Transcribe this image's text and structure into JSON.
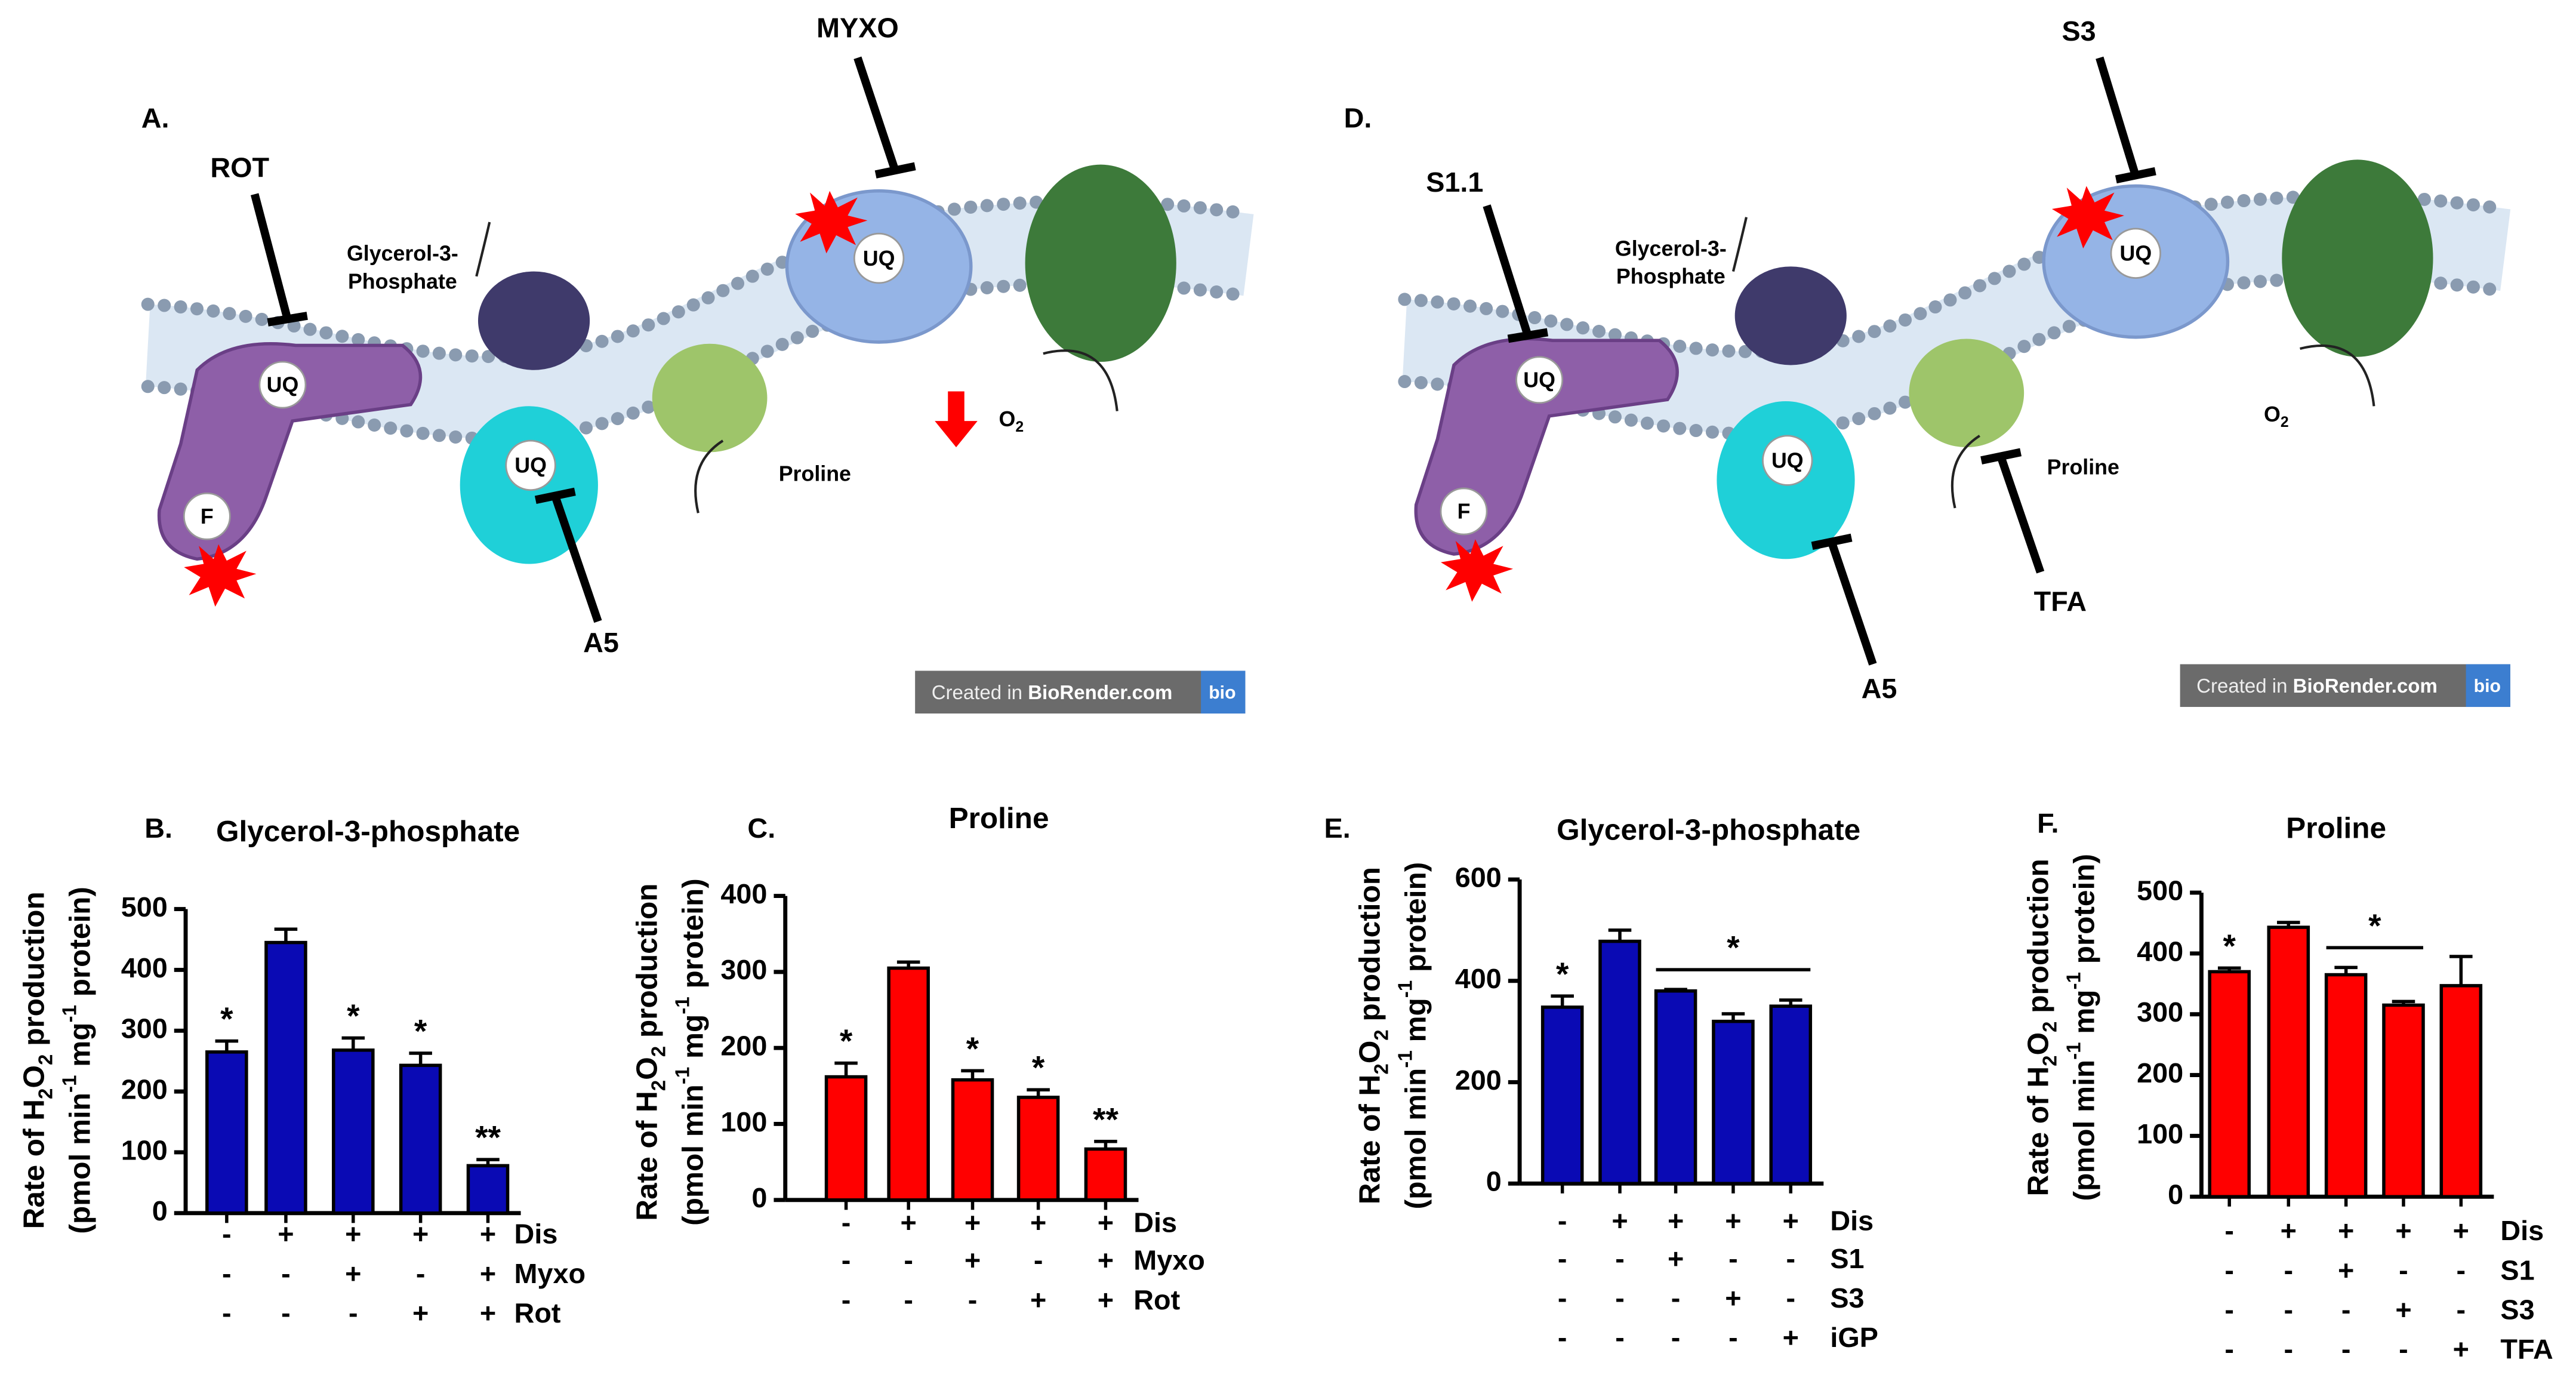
{
  "diagrams": [
    {
      "panel": "A.",
      "inhibitors": [
        "ROT",
        "MYXO",
        "A5"
      ],
      "substrates": [
        "Glycerol-3-",
        "Phosphate",
        "Proline"
      ],
      "uq": "UQ",
      "f": "F",
      "o2": [
        "O",
        "2"
      ],
      "credit": [
        "Created in ",
        "BioRender.com",
        "bio"
      ]
    },
    {
      "panel": "D.",
      "inhibitors": [
        "S1.1",
        "S3",
        "TFA",
        "A5"
      ],
      "substrates": [
        "Glycerol-3-",
        "Phosphate",
        "Proline"
      ],
      "uq": "UQ",
      "f": "F",
      "o2": [
        "O",
        "2"
      ],
      "credit": [
        "Created in ",
        "BioRender.com",
        "bio"
      ]
    }
  ],
  "chart_data": [
    {
      "type": "bar",
      "panel": "B.",
      "title": "Glycerol-3-phosphate",
      "color": "#0a0ab4",
      "ylabel": [
        [
          "Rate of H",
          "2",
          "O",
          "2",
          " production"
        ],
        [
          "(pmol min",
          "-1",
          " mg",
          "-1",
          " protein)"
        ]
      ],
      "values": [
        265,
        445,
        268,
        243,
        78
      ],
      "errors": [
        18,
        22,
        20,
        20,
        10
      ],
      "annotations": [
        "*",
        null,
        "*",
        "*",
        "**"
      ],
      "ylim": [
        0,
        500
      ],
      "yticks": [
        0,
        100,
        200,
        300,
        400,
        500
      ],
      "conditions": [
        {
          "name": "Dis",
          "signs": [
            "-",
            "+",
            "+",
            "+",
            "+"
          ]
        },
        {
          "name": "Myxo",
          "signs": [
            "-",
            "-",
            "+",
            "-",
            "+"
          ]
        },
        {
          "name": "Rot",
          "signs": [
            "-",
            "-",
            "-",
            "+",
            "+"
          ]
        }
      ]
    },
    {
      "type": "bar",
      "panel": "C.",
      "title": "Proline",
      "color": "#ff0000",
      "ylabel": [
        [
          "Rate of H",
          "2",
          "O",
          "2",
          " production"
        ],
        [
          "(pmol min",
          "-1",
          " mg",
          "-1",
          " protein)"
        ]
      ],
      "values": [
        162,
        305,
        158,
        135,
        67
      ],
      "errors": [
        18,
        8,
        12,
        10,
        10
      ],
      "annotations": [
        "*",
        null,
        "*",
        "*",
        "**"
      ],
      "ylim": [
        0,
        400
      ],
      "yticks": [
        0,
        100,
        200,
        300,
        400
      ],
      "conditions": [
        {
          "name": "Dis",
          "signs": [
            "-",
            "+",
            "+",
            "+",
            "+"
          ]
        },
        {
          "name": "Myxo",
          "signs": [
            "-",
            "-",
            "+",
            "-",
            "+"
          ]
        },
        {
          "name": "Rot",
          "signs": [
            "-",
            "-",
            "-",
            "+",
            "+"
          ]
        }
      ]
    },
    {
      "type": "bar",
      "panel": "E.",
      "title": "Glycerol-3-phosphate",
      "color": "#0a0ab4",
      "ylabel": [
        [
          "Rate of H",
          "2",
          "O",
          "2",
          " production"
        ],
        [
          "(pmol min",
          "-1",
          " mg",
          "-1",
          " protein)"
        ]
      ],
      "values": [
        348,
        478,
        380,
        320,
        350
      ],
      "errors": [
        22,
        22,
        3,
        15,
        12
      ],
      "annotations": [
        "*",
        null,
        null,
        null,
        null
      ],
      "group_annotation": {
        "text": "*",
        "span": [
          2,
          4
        ]
      },
      "ylim": [
        0,
        600
      ],
      "yticks": [
        0,
        200,
        400,
        600
      ],
      "conditions": [
        {
          "name": "Dis",
          "signs": [
            "-",
            "+",
            "+",
            "+",
            "+"
          ]
        },
        {
          "name": "S1",
          "signs": [
            "-",
            "-",
            "+",
            "-",
            "-"
          ]
        },
        {
          "name": "S3",
          "signs": [
            "-",
            "-",
            "-",
            "+",
            "-"
          ]
        },
        {
          "name": "iGP",
          "signs": [
            "-",
            "-",
            "-",
            "-",
            "+"
          ]
        }
      ]
    },
    {
      "type": "bar",
      "panel": "F.",
      "title": "Proline",
      "color": "#ff0000",
      "ylabel": [
        [
          "Rate of H",
          "2",
          "O",
          "2",
          " production"
        ],
        [
          "(pmol min",
          "-1",
          " mg",
          "-1",
          " protein)"
        ]
      ],
      "values": [
        370,
        443,
        365,
        315,
        347
      ],
      "errors": [
        6,
        8,
        12,
        6,
        48
      ],
      "annotations": [
        "*",
        null,
        null,
        null,
        null
      ],
      "group_annotation": {
        "text": "*",
        "span": [
          2,
          3
        ]
      },
      "ylim": [
        0,
        500
      ],
      "yticks": [
        0,
        100,
        200,
        300,
        400,
        500
      ],
      "conditions": [
        {
          "name": "Dis",
          "signs": [
            "-",
            "+",
            "+",
            "+",
            "+"
          ]
        },
        {
          "name": "S1",
          "signs": [
            "-",
            "-",
            "+",
            "-",
            "-"
          ]
        },
        {
          "name": "S3",
          "signs": [
            "-",
            "-",
            "-",
            "+",
            "-"
          ]
        },
        {
          "name": "TFA",
          "signs": [
            "-",
            "-",
            "-",
            "-",
            "+"
          ]
        }
      ]
    }
  ]
}
